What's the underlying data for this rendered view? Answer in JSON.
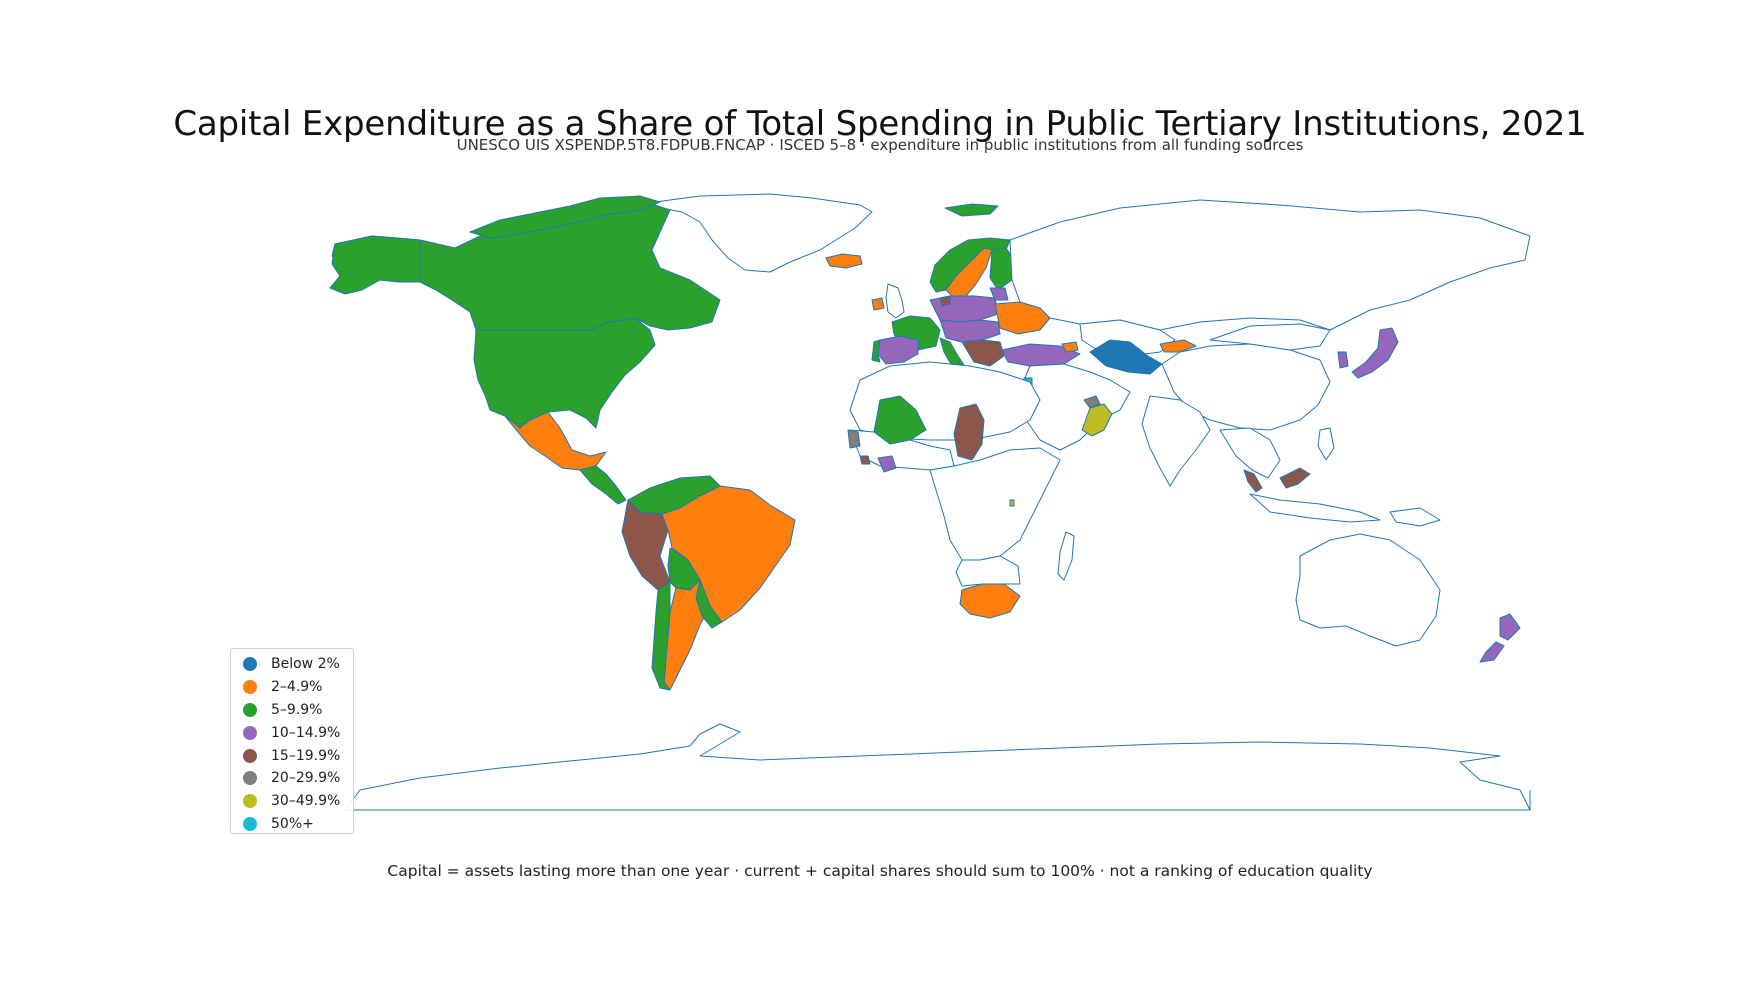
{
  "title": "Capital Expenditure as a Share of Total Spending in Public Tertiary Institutions, 2021",
  "subtitle": "UNESCO UIS XSPENDP.5T8.FDPUB.FNCAP · ISCED 5–8 · expenditure in public institutions from all funding sources",
  "footnote": "Capital = assets lasting more than one year · current + capital shares should sum to 100% · not a ranking of education quality",
  "colors": {
    "outline": "#1f77b4",
    "no_data_fill": "#ffffff"
  },
  "legend": [
    {
      "label": "Below 2%",
      "color": "#1f77b4"
    },
    {
      "label": "2–4.9%",
      "color": "#ff7f0e"
    },
    {
      "label": "5–9.9%",
      "color": "#2ca02c"
    },
    {
      "label": "10–14.9%",
      "color": "#9467bd"
    },
    {
      "label": "15–19.9%",
      "color": "#8c564b"
    },
    {
      "label": "20–29.9%",
      "color": "#7f7f7f"
    },
    {
      "label": "30–49.9%",
      "color": "#bcbd22"
    },
    {
      "label": "50%+",
      "color": "#17becf"
    }
  ]
}
